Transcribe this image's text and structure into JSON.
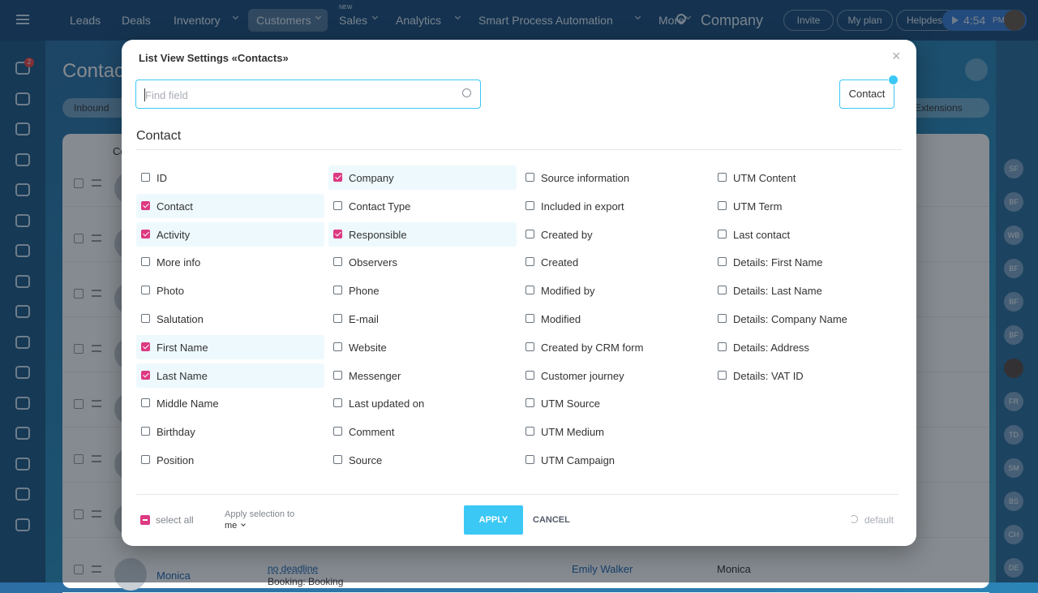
{
  "topnav": {
    "items": [
      {
        "label": "Leads"
      },
      {
        "label": "Deals"
      },
      {
        "label": "Inventory",
        "dropdown": true
      },
      {
        "label": "Customers",
        "dropdown": true,
        "active": true
      },
      {
        "label": "Sales",
        "badge": "NEW",
        "dropdown": true
      },
      {
        "label": "Analytics",
        "dropdown": true
      },
      {
        "label": "Smart Process Automation",
        "dropdown": true
      },
      {
        "label": "More",
        "dropdown": true
      }
    ],
    "company": "Company",
    "buttons": [
      "Invite",
      "My plan",
      "Helpdesk"
    ],
    "time": "4:54",
    "time_suffix": "PM"
  },
  "sidebar": {
    "badge": "2"
  },
  "background": {
    "page_title": "Contacts",
    "filter": "Inbound",
    "extensions": "Extensions",
    "header_label": "Contact",
    "last_row": {
      "name": "Monica",
      "deadline": "no deadline",
      "activity": "Booking: Booking",
      "responsible": "Emily Walker",
      "first_name": "Monica"
    },
    "avatars": [
      {
        "initials": "SF"
      },
      {
        "initials": "BF"
      },
      {
        "initials": "WB"
      },
      {
        "initials": "BF"
      },
      {
        "initials": "BF"
      },
      {
        "initials": "BF"
      },
      {
        "photo": true
      },
      {
        "initials": "FR"
      },
      {
        "initials": "TD"
      },
      {
        "initials": "SM"
      },
      {
        "initials": "BS"
      },
      {
        "initials": "CH"
      },
      {
        "initials": "DE"
      }
    ]
  },
  "modal": {
    "title": "List View Settings «Contacts»",
    "search_placeholder": "Find field",
    "entity_button": "Contact",
    "section_title": "Contact",
    "columns": [
      [
        {
          "label": "ID",
          "checked": false
        },
        {
          "label": "Contact",
          "checked": true
        },
        {
          "label": "Activity",
          "checked": true
        },
        {
          "label": "More info",
          "checked": false
        },
        {
          "label": "Photo",
          "checked": false
        },
        {
          "label": "Salutation",
          "checked": false
        },
        {
          "label": "First Name",
          "checked": true
        },
        {
          "label": "Last Name",
          "checked": true
        },
        {
          "label": "Middle Name",
          "checked": false
        },
        {
          "label": "Birthday",
          "checked": false
        },
        {
          "label": "Position",
          "checked": false
        }
      ],
      [
        {
          "label": "Company",
          "checked": true
        },
        {
          "label": "Contact Type",
          "checked": false
        },
        {
          "label": "Responsible",
          "checked": true
        },
        {
          "label": "Observers",
          "checked": false
        },
        {
          "label": "Phone",
          "checked": false
        },
        {
          "label": "E-mail",
          "checked": false
        },
        {
          "label": "Website",
          "checked": false
        },
        {
          "label": "Messenger",
          "checked": false
        },
        {
          "label": "Last updated on",
          "checked": false
        },
        {
          "label": "Comment",
          "checked": false
        },
        {
          "label": "Source",
          "checked": false
        }
      ],
      [
        {
          "label": "Source information",
          "checked": false
        },
        {
          "label": "Included in export",
          "checked": false
        },
        {
          "label": "Created by",
          "checked": false
        },
        {
          "label": "Created",
          "checked": false
        },
        {
          "label": "Modified by",
          "checked": false
        },
        {
          "label": "Modified",
          "checked": false
        },
        {
          "label": "Created by CRM form",
          "checked": false
        },
        {
          "label": "Customer journey",
          "checked": false
        },
        {
          "label": "UTM Source",
          "checked": false
        },
        {
          "label": "UTM Medium",
          "checked": false
        },
        {
          "label": "UTM Campaign",
          "checked": false
        }
      ],
      [
        {
          "label": "UTM Content",
          "checked": false
        },
        {
          "label": "UTM Term",
          "checked": false
        },
        {
          "label": "Last contact",
          "checked": false
        },
        {
          "label": "Details: First Name",
          "checked": false
        },
        {
          "label": "Details: Last Name",
          "checked": false
        },
        {
          "label": "Details: Company Name",
          "checked": false
        },
        {
          "label": "Details: Address",
          "checked": false
        },
        {
          "label": "Details: VAT ID",
          "checked": false
        }
      ]
    ],
    "footer": {
      "select_all": "select all",
      "apply_to_label": "Apply selection to",
      "apply_to_value": "me",
      "apply": "APPLY",
      "cancel": "CANCEL",
      "default": "default"
    }
  }
}
